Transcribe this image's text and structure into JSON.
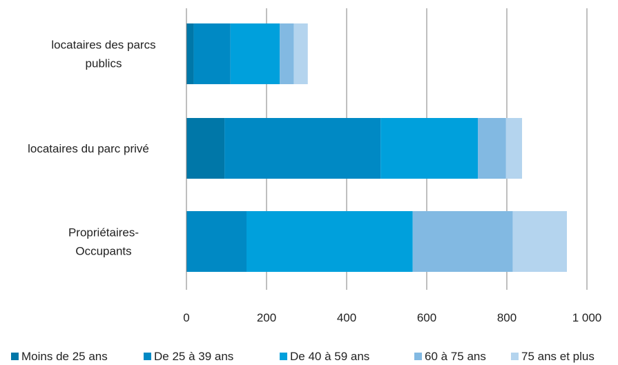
{
  "chart_data": {
    "type": "bar",
    "orientation": "horizontal",
    "stacked": true,
    "categories": [
      [
        "locataires des parcs",
        "publics"
      ],
      [
        "locataires du parc privé"
      ],
      [
        "Propriétaires-",
        "Occupants"
      ]
    ],
    "series": [
      {
        "name": "Moins de 25 ans",
        "color": "#0077a8",
        "values": [
          18,
          95,
          0
        ]
      },
      {
        "name": "De 25 à 39 ans",
        "color": "#0089c4",
        "values": [
          92,
          390,
          150
        ]
      },
      {
        "name": "De 40 à 59 ans",
        "color": "#00a0dc",
        "values": [
          123,
          243,
          415
        ]
      },
      {
        "name": "60 à 75 ans",
        "color": "#82b9e2",
        "values": [
          35,
          70,
          250
        ]
      },
      {
        "name": "75 ans et plus",
        "color": "#b4d4ee",
        "values": [
          35,
          40,
          135
        ]
      }
    ],
    "xlim": [
      0,
      1000
    ],
    "xticks": [
      0,
      200,
      400,
      600,
      800,
      1000
    ],
    "xtick_labels": [
      "0",
      "200",
      "400",
      "600",
      "800",
      "1 000"
    ],
    "grid": "vertical",
    "legend_position": "bottom"
  }
}
